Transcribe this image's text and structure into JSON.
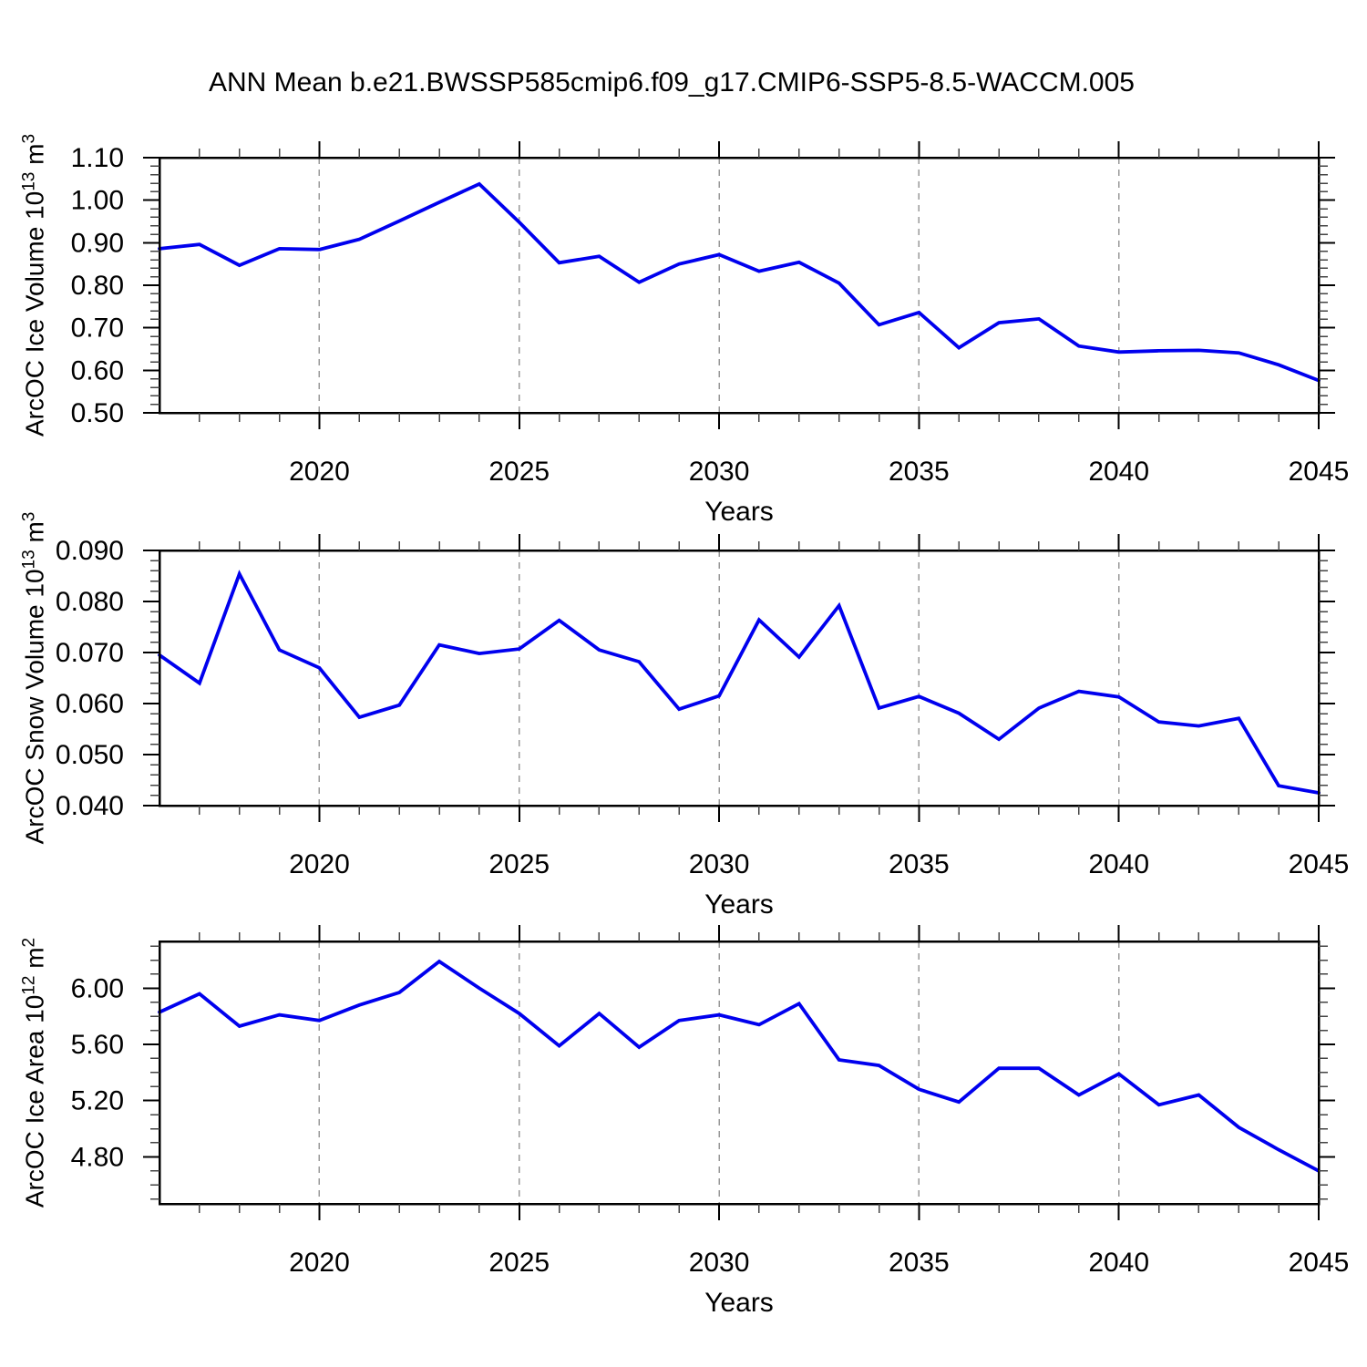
{
  "title": "ANN Mean b.e21.BWSSP585cmip6.f09_g17.CMIP6-SSP5-8.5-WACCM.005",
  "colors": {
    "line": "#0000ee",
    "grid": "#999999",
    "frame": "#000000",
    "text": "#000000",
    "background": "#ffffff"
  },
  "x_axis": {
    "label": "Years",
    "lim": [
      2016,
      2045
    ],
    "years": [
      2016,
      2017,
      2018,
      2019,
      2020,
      2021,
      2022,
      2023,
      2024,
      2025,
      2026,
      2027,
      2028,
      2029,
      2030,
      2031,
      2032,
      2033,
      2034,
      2035,
      2036,
      2037,
      2038,
      2039,
      2040,
      2041,
      2042,
      2043,
      2044,
      2045
    ],
    "major_ticks": [
      2020,
      2025,
      2030,
      2035,
      2040,
      2045
    ],
    "tick_labels": [
      "2020",
      "2025",
      "2030",
      "2035",
      "2040",
      "2045"
    ],
    "gridlines": [
      2020,
      2025,
      2030,
      2035,
      2040
    ],
    "minor_step": 1
  },
  "chart_data": [
    {
      "type": "line",
      "name": "ice-volume",
      "ylabel_text": "ArcOC Ice Volume 10^13 m^3",
      "ylabel": {
        "prefix": "ArcOC Ice Volume 10",
        "exp": "13",
        "unit": " m",
        "unit_exp": "3"
      },
      "xlabel": "Years",
      "legend": null,
      "grid": "vertical-dashed",
      "ylim": [
        0.5,
        1.1
      ],
      "ytick_values": [
        0.5,
        0.6,
        0.7,
        0.8,
        0.9,
        1.0,
        1.1
      ],
      "ytick_labels": [
        "0.50",
        "0.60",
        "0.70",
        "0.80",
        "0.90",
        "1.00",
        "1.10"
      ],
      "y_minor_step": 0.02,
      "x": [
        2016,
        2017,
        2018,
        2019,
        2020,
        2021,
        2022,
        2023,
        2024,
        2025,
        2026,
        2027,
        2028,
        2029,
        2030,
        2031,
        2032,
        2033,
        2034,
        2035,
        2036,
        2037,
        2038,
        2039,
        2040,
        2041,
        2042,
        2043,
        2044,
        2045
      ],
      "values": [
        0.886,
        0.896,
        0.847,
        0.886,
        0.884,
        0.908,
        0.951,
        0.995,
        1.038,
        0.948,
        0.853,
        0.868,
        0.807,
        0.85,
        0.872,
        0.833,
        0.854,
        0.805,
        0.707,
        0.736,
        0.653,
        0.712,
        0.721,
        0.657,
        0.643,
        0.646,
        0.647,
        0.641,
        0.613,
        0.576
      ]
    },
    {
      "type": "line",
      "name": "snow-volume",
      "ylabel_text": "ArcOC Snow Volume 10^13 m^3",
      "ylabel": {
        "prefix": "ArcOC Snow Volume 10",
        "exp": "13",
        "unit": " m",
        "unit_exp": "3"
      },
      "xlabel": "Years",
      "legend": null,
      "grid": "vertical-dashed",
      "ylim": [
        0.04,
        0.09
      ],
      "ytick_values": [
        0.04,
        0.05,
        0.06,
        0.07,
        0.08,
        0.09
      ],
      "ytick_labels": [
        "0.040",
        "0.050",
        "0.060",
        "0.070",
        "0.080",
        "0.090"
      ],
      "y_minor_step": 0.002,
      "x": [
        2016,
        2017,
        2018,
        2019,
        2020,
        2021,
        2022,
        2023,
        2024,
        2025,
        2026,
        2027,
        2028,
        2029,
        2030,
        2031,
        2032,
        2033,
        2034,
        2035,
        2036,
        2037,
        2038,
        2039,
        2040,
        2041,
        2042,
        2043,
        2044,
        2045
      ],
      "values": [
        0.0695,
        0.064,
        0.0854,
        0.0705,
        0.067,
        0.0573,
        0.0597,
        0.0715,
        0.0698,
        0.0707,
        0.0763,
        0.0705,
        0.0682,
        0.0589,
        0.0615,
        0.0764,
        0.0691,
        0.0792,
        0.0591,
        0.0614,
        0.0581,
        0.053,
        0.0591,
        0.0624,
        0.0613,
        0.0564,
        0.0556,
        0.0571,
        0.0439,
        0.0425
      ]
    },
    {
      "type": "line",
      "name": "ice-area",
      "ylabel_text": "ArcOC Ice Area 10^12 m^2",
      "ylabel": {
        "prefix": "ArcOC Ice Area 10",
        "exp": "12",
        "unit": " m",
        "unit_exp": "2"
      },
      "xlabel": "Years",
      "legend": null,
      "grid": "vertical-dashed",
      "ylim": [
        4.465,
        6.333
      ],
      "ytick_values": [
        4.8,
        5.2,
        5.6,
        6.0
      ],
      "ytick_labels": [
        "4.80",
        "5.20",
        "5.60",
        "6.00"
      ],
      "y_minor_step": 0.1,
      "x": [
        2016,
        2017,
        2018,
        2019,
        2020,
        2021,
        2022,
        2023,
        2024,
        2025,
        2026,
        2027,
        2028,
        2029,
        2030,
        2031,
        2032,
        2033,
        2034,
        2035,
        2036,
        2037,
        2038,
        2039,
        2040,
        2041,
        2042,
        2043,
        2044,
        2045
      ],
      "values": [
        5.83,
        5.96,
        5.73,
        5.81,
        5.77,
        5.88,
        5.97,
        6.19,
        6.0,
        5.82,
        5.59,
        5.82,
        5.58,
        5.77,
        5.81,
        5.74,
        5.89,
        5.49,
        5.45,
        5.28,
        5.19,
        5.43,
        5.43,
        5.24,
        5.39,
        5.17,
        5.24,
        5.01,
        4.85,
        4.7
      ]
    }
  ]
}
